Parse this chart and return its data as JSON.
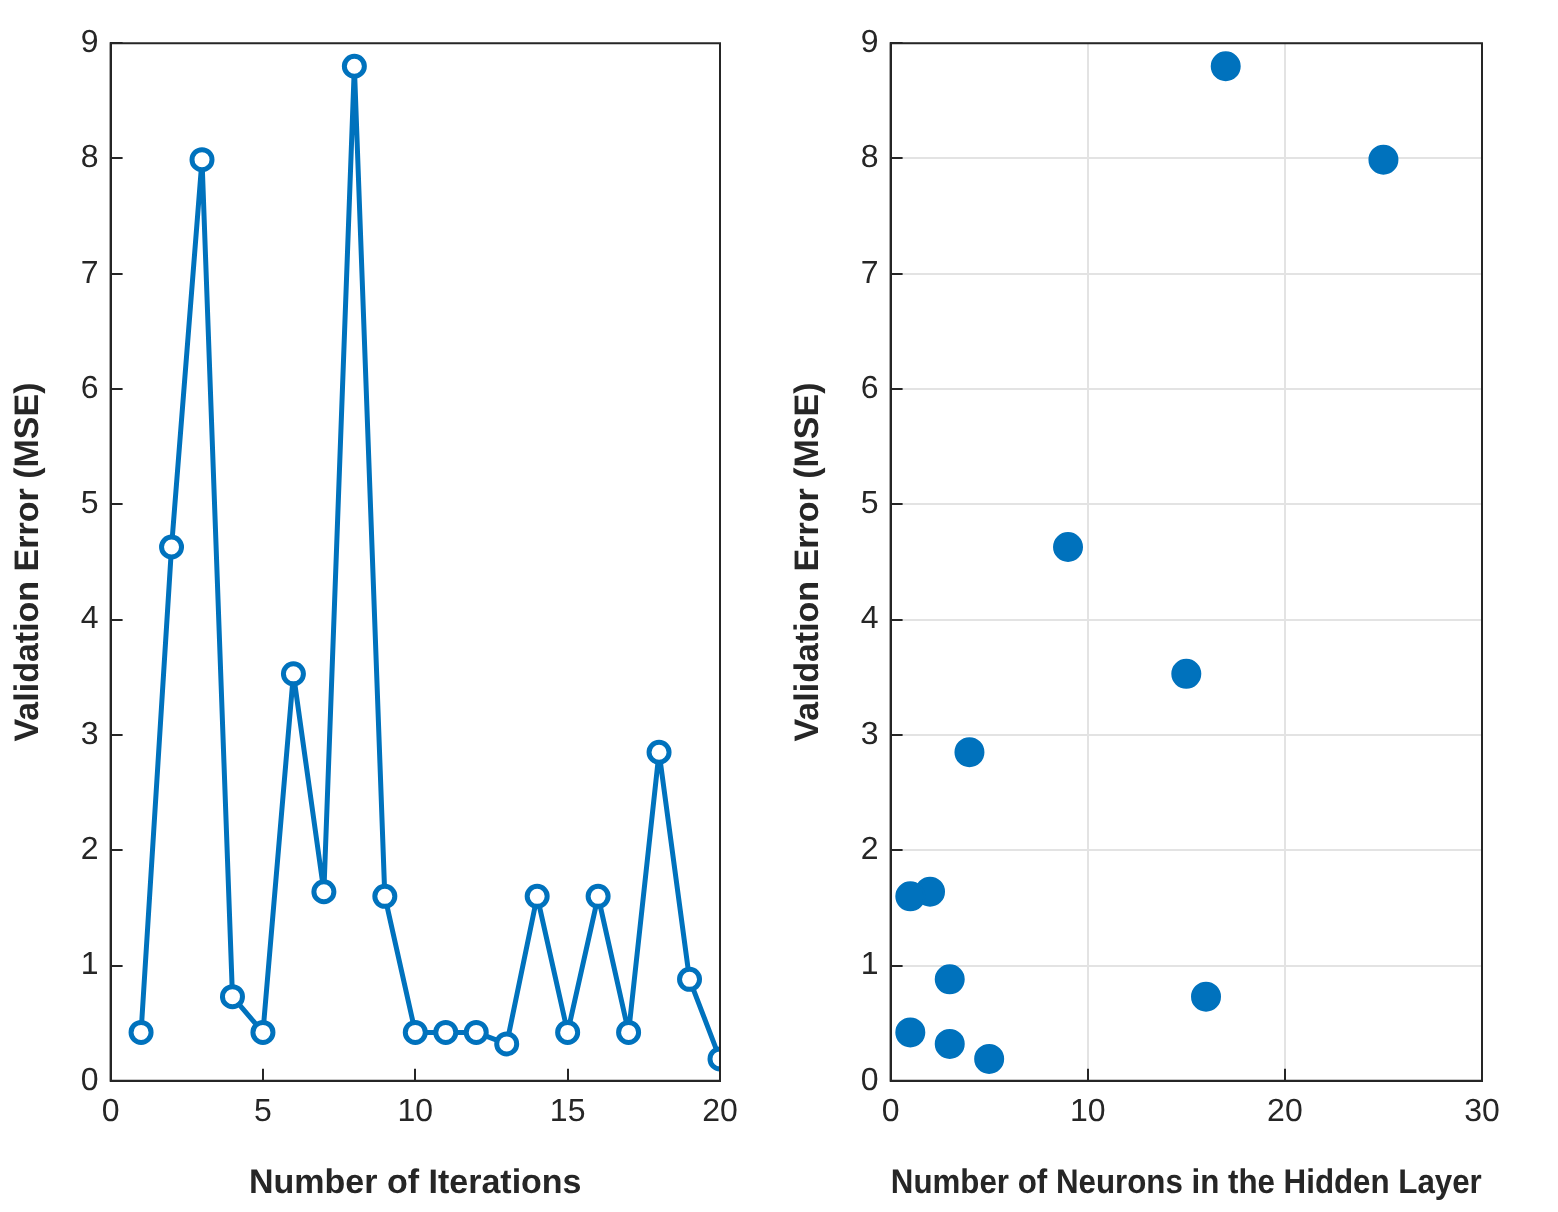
{
  "chart_data": [
    {
      "type": "line",
      "xlabel": "Number of Iterations",
      "ylabel": "Validation Error (MSE)",
      "x": [
        1,
        2,
        3,
        4,
        5,
        6,
        7,
        8,
        9,
        10,
        11,
        12,
        13,
        14,
        15,
        16,
        17,
        18,
        19,
        20
      ],
      "series": [
        {
          "color": "#0072bd",
          "values": [
            0.42,
            4.63,
            7.99,
            0.73,
            0.42,
            3.53,
            1.64,
            8.8,
            1.6,
            0.42,
            0.42,
            0.42,
            0.32,
            1.6,
            0.42,
            1.6,
            0.42,
            2.85,
            0.88,
            0.19
          ]
        }
      ],
      "xlim": [
        0,
        20
      ],
      "xticks": [
        0,
        5,
        10,
        15,
        20
      ],
      "ylim": [
        0,
        9
      ],
      "yticks": [
        0,
        1,
        2,
        3,
        4,
        5,
        6,
        7,
        8,
        9
      ],
      "grid": false,
      "legend": false,
      "marker": "circle",
      "line_style": "solid"
    },
    {
      "type": "scatter",
      "xlabel": "Number of Neurons in the Hidden Layer",
      "ylabel": "Validation Error (MSE)",
      "x": [
        17,
        25,
        9,
        15,
        4,
        2,
        1,
        1,
        3,
        16,
        3,
        5
      ],
      "series": [
        {
          "color": "#0072bd",
          "values": [
            8.8,
            7.99,
            4.63,
            3.53,
            2.85,
            1.64,
            1.6,
            0.42,
            0.88,
            0.73,
            0.32,
            0.19
          ]
        }
      ],
      "xlim": [
        0,
        30
      ],
      "xticks": [
        0,
        10,
        20,
        30
      ],
      "ylim": [
        0,
        9
      ],
      "yticks": [
        0,
        1,
        2,
        3,
        4,
        5,
        6,
        7,
        8,
        9
      ],
      "grid": true,
      "legend": false,
      "marker": "circle"
    }
  ]
}
